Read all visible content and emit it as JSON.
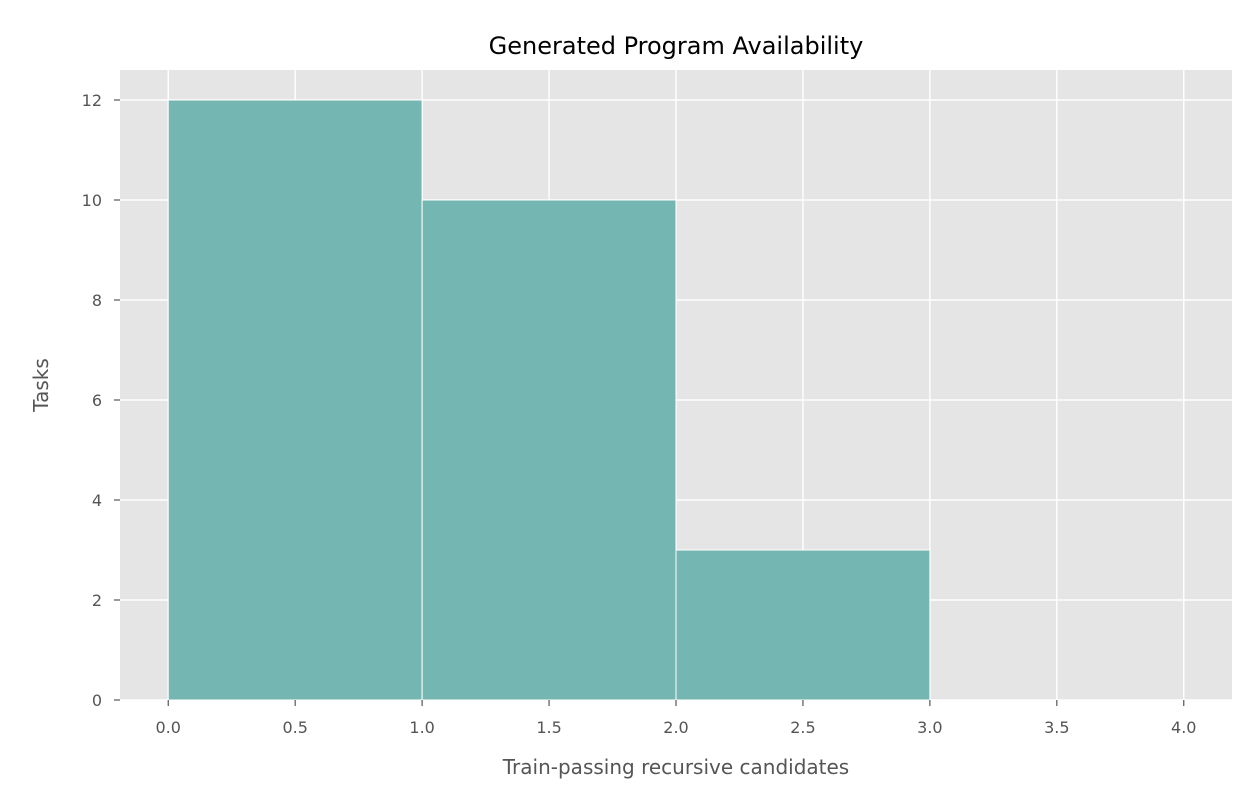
{
  "chart_data": {
    "type": "bar",
    "title": "Generated Program Availability",
    "xlabel": "Train-passing recursive candidates",
    "ylabel": "Tasks",
    "bins": [
      {
        "x0": 0,
        "x1": 1,
        "value": 12
      },
      {
        "x0": 1,
        "x1": 2,
        "value": 10
      },
      {
        "x0": 2,
        "x1": 3,
        "value": 3
      }
    ],
    "xlim": [
      -0.19,
      4.19
    ],
    "ylim": [
      0,
      12.6
    ],
    "xticks": [
      0.0,
      0.5,
      1.0,
      1.5,
      2.0,
      2.5,
      3.0,
      3.5,
      4.0
    ],
    "xtick_labels": [
      "0.0",
      "0.5",
      "1.0",
      "1.5",
      "2.0",
      "2.5",
      "3.0",
      "3.5",
      "4.0"
    ],
    "yticks": [
      0,
      2,
      4,
      6,
      8,
      10,
      12
    ],
    "ytick_labels": [
      "0",
      "2",
      "4",
      "6",
      "8",
      "10",
      "12"
    ],
    "grid": true,
    "style": "ggplot",
    "colors": {
      "bar": "#74b7b2",
      "plot_background": "#e5e5e5",
      "grid": "#ffffff",
      "tick_text": "#555555",
      "title_text": "#000000"
    }
  }
}
